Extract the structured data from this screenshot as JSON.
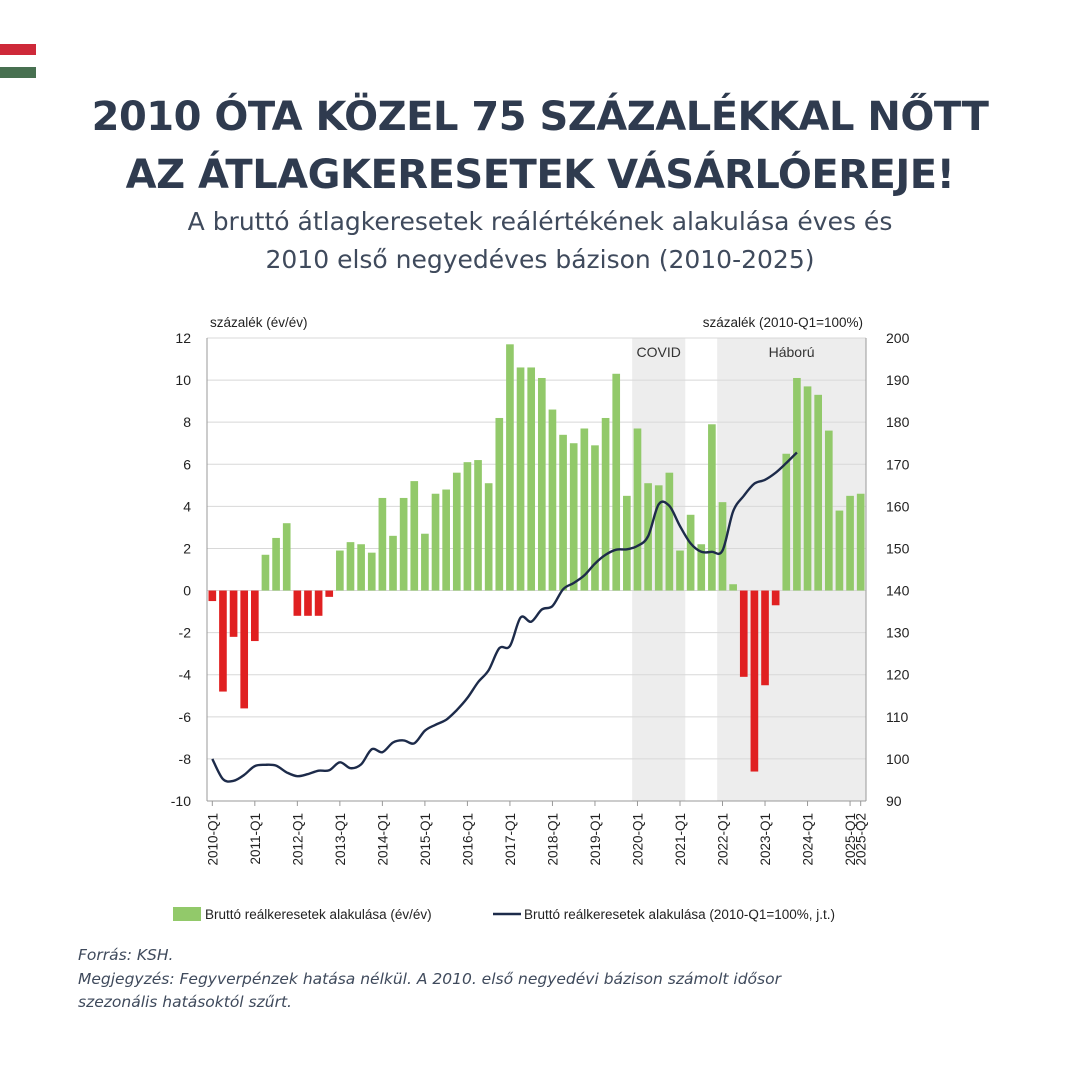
{
  "page": {
    "title_line1": "2010 ÓTA KÖZEL 75 SZÁZALÉKKAL NŐTT",
    "title_line2": "AZ ÁTLAGKERESETEK VÁSÁRLÓEREJE!",
    "subtitle_line1": "A bruttó átlagkeresetek reálértékének alakulása éves és",
    "subtitle_line2": "2010 első negyedéves bázison (2010-2025)",
    "source": "Forrás: KSH.",
    "note_line1": "Megjegyzés: Fegyverpénzek hatása nélkül. A 2010. első negyedévi bázison számolt idősor",
    "note_line2": "szezonális hatásoktól szűrt.",
    "flag_colors": [
      "#ce2939",
      "#ffffff",
      "#477050"
    ]
  },
  "chart_data": {
    "type": "bar",
    "quarters": [
      "2010-Q1",
      "2010-Q2",
      "2010-Q3",
      "2010-Q4",
      "2011-Q1",
      "2011-Q2",
      "2011-Q3",
      "2011-Q4",
      "2012-Q1",
      "2012-Q2",
      "2012-Q3",
      "2012-Q4",
      "2013-Q1",
      "2013-Q2",
      "2013-Q3",
      "2013-Q4",
      "2014-Q1",
      "2014-Q2",
      "2014-Q3",
      "2014-Q4",
      "2015-Q1",
      "2015-Q2",
      "2015-Q3",
      "2015-Q4",
      "2016-Q1",
      "2016-Q2",
      "2016-Q3",
      "2016-Q4",
      "2017-Q1",
      "2017-Q2",
      "2017-Q3",
      "2017-Q4",
      "2018-Q1",
      "2018-Q2",
      "2018-Q3",
      "2018-Q4",
      "2019-Q1",
      "2019-Q2",
      "2019-Q3",
      "2019-Q4",
      "2020-Q1",
      "2020-Q2",
      "2020-Q3",
      "2020-Q4",
      "2021-Q1",
      "2021-Q2",
      "2021-Q3",
      "2021-Q4",
      "2022-Q1",
      "2022-Q2",
      "2022-Q3",
      "2022-Q4",
      "2023-Q1",
      "2023-Q2",
      "2023-Q3",
      "2023-Q4",
      "2024-Q1",
      "2024-Q2",
      "2024-Q3",
      "2024-Q4",
      "2025-Q1",
      "2025-Q2"
    ],
    "x_tick_labels": [
      "2010-Q1",
      "2011-Q1",
      "2012-Q1",
      "2013-Q1",
      "2014-Q1",
      "2015-Q1",
      "2016-Q1",
      "2017-Q1",
      "2018-Q1",
      "2019-Q1",
      "2020-Q1",
      "2021-Q1",
      "2022-Q1",
      "2023-Q1",
      "2024-Q1",
      "2025-Q1",
      "2025-Q2"
    ],
    "series": [
      {
        "name": "Bruttó reálkeresetek alakulása (év/év)",
        "type": "bar",
        "axis": "left",
        "values": [
          -0.5,
          -4.8,
          -2.2,
          -5.6,
          -2.4,
          1.7,
          2.5,
          3.2,
          -1.2,
          -1.2,
          -1.2,
          -0.3,
          1.9,
          2.3,
          2.2,
          1.8,
          4.4,
          2.6,
          4.4,
          5.2,
          2.7,
          4.6,
          4.8,
          5.6,
          6.1,
          6.2,
          5.1,
          8.2,
          11.7,
          10.6,
          10.6,
          10.1,
          8.6,
          7.4,
          7.0,
          7.7,
          6.9,
          8.2,
          10.3,
          4.5,
          7.7,
          5.1,
          5.0,
          5.6,
          1.9,
          3.6,
          2.2,
          7.9,
          4.2,
          0.3,
          -4.1,
          -8.6,
          -4.5,
          -0.7,
          6.5,
          10.1,
          9.7,
          9.3,
          7.6,
          3.8,
          4.5,
          4.6
        ],
        "positive_color": "#92c96a",
        "negative_color": "#e02021"
      },
      {
        "name": "Bruttó reálkeresetek alakulása (2010-Q1=100%, j.t.)",
        "type": "line",
        "axis": "right",
        "values": [
          100,
          95.2,
          94.8,
          96.2,
          98.3,
          98.6,
          98.4,
          96.8,
          95.9,
          96.4,
          97.2,
          97.3,
          99.2,
          97.8,
          98.7,
          102.3,
          101.6,
          103.9,
          104.4,
          103.7,
          106.7,
          108.1,
          109.3,
          111.6,
          114.5,
          118.2,
          121.1,
          126.3,
          126.8,
          133.6,
          132.6,
          135.5,
          136.3,
          140.3,
          141.8,
          143.6,
          146.4,
          148.5,
          149.7,
          149.8,
          150.6,
          152.9,
          160.5,
          160.1,
          155.3,
          151.2,
          149.2,
          149.2,
          149.5,
          158.8,
          162.5,
          165.4,
          166.3,
          168.0,
          170.3,
          172.8
        ],
        "line_x_index": [
          0,
          1,
          2,
          3,
          4,
          5,
          6,
          7,
          8,
          9,
          10,
          11,
          12,
          13,
          14,
          15,
          16,
          17,
          18,
          19,
          20,
          21,
          22,
          23,
          24,
          25,
          26,
          27,
          28,
          29,
          30,
          31,
          32,
          33,
          34,
          35,
          36,
          37,
          38,
          39,
          40,
          41,
          42,
          43,
          44,
          45,
          46,
          47,
          48,
          49,
          50,
          51,
          52,
          53,
          54,
          55
        ],
        "color": "#1d2b4a"
      }
    ],
    "left_axis": {
      "label": "százalék (év/év)",
      "ylim": [
        -10,
        12
      ],
      "ticks": [
        12,
        10,
        8,
        6,
        4,
        2,
        0,
        -2,
        -4,
        -6,
        -8,
        -10
      ]
    },
    "right_axis": {
      "label": "százalék (2010-Q1=100%)",
      "ylim": [
        90,
        200
      ],
      "ticks": [
        200,
        190,
        180,
        170,
        160,
        150,
        140,
        130,
        120,
        110,
        100,
        90
      ]
    },
    "shaded_periods": [
      {
        "label": "COVID",
        "start": "2020-Q1",
        "end": "2021-Q1"
      },
      {
        "label": "Háború",
        "start": "2022-Q1",
        "end": "2025-Q2"
      }
    ],
    "grid": true,
    "legend_position": "bottom"
  }
}
